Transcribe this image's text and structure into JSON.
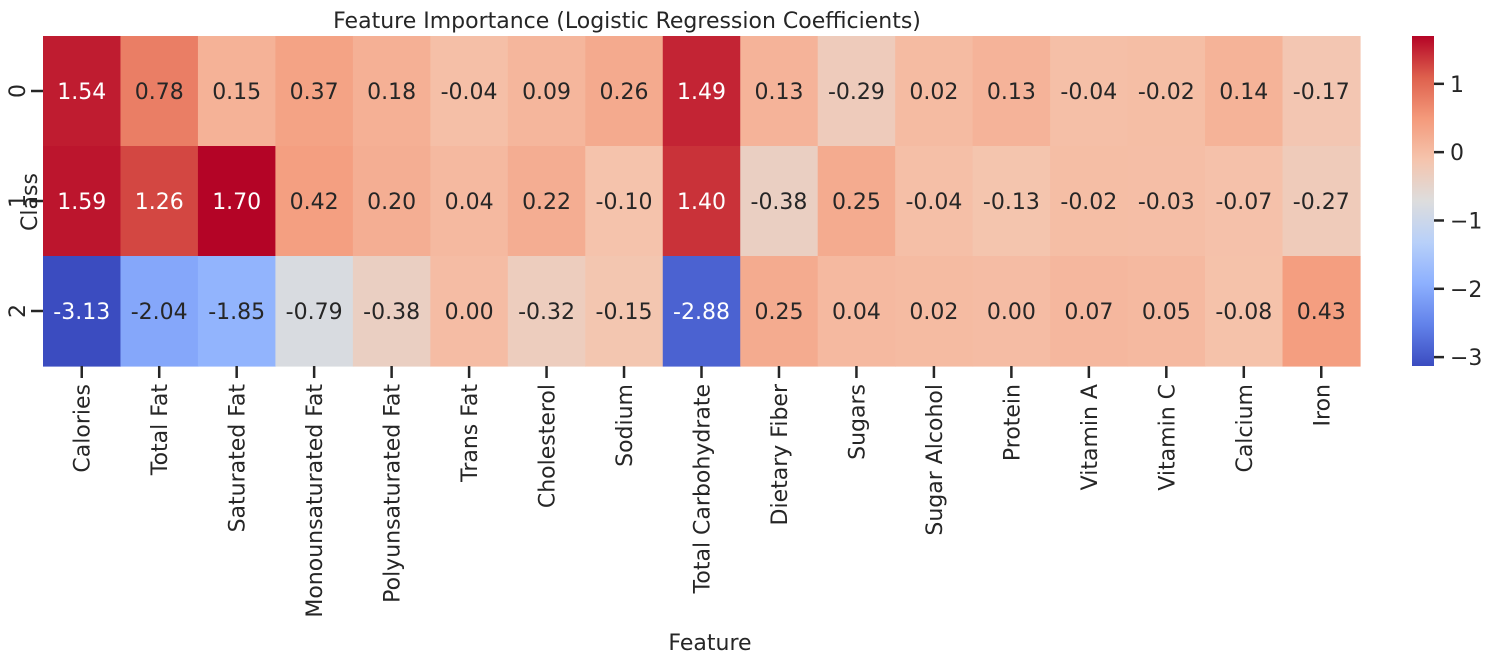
{
  "chart_data": {
    "type": "heatmap",
    "title": "Feature Importance (Logistic Regression Coefficients)",
    "xlabel": "Feature",
    "ylabel": "Class",
    "x": [
      "Calories",
      "Total Fat",
      "Saturated Fat",
      "Monounsaturated Fat",
      "Polyunsaturated Fat",
      "Trans Fat",
      "Cholesterol",
      "Sodium",
      "Total Carbohydrate",
      "Dietary Fiber",
      "Sugars",
      "Sugar Alcohol",
      "Protein",
      "Vitamin A",
      "Vitamin C",
      "Calcium",
      "Iron"
    ],
    "y": [
      "0",
      "1",
      "2"
    ],
    "values": [
      [
        1.54,
        0.78,
        0.15,
        0.37,
        0.18,
        -0.04,
        0.09,
        0.26,
        1.49,
        0.13,
        -0.29,
        0.02,
        0.13,
        -0.04,
        -0.02,
        0.14,
        -0.17
      ],
      [
        1.59,
        1.26,
        1.7,
        0.42,
        0.2,
        0.04,
        0.22,
        -0.1,
        1.4,
        -0.38,
        0.25,
        -0.04,
        -0.13,
        -0.02,
        -0.03,
        -0.07,
        -0.27
      ],
      [
        -3.13,
        -2.04,
        -1.85,
        -0.79,
        -0.38,
        0.0,
        -0.32,
        -0.15,
        -2.88,
        0.25,
        0.04,
        0.02,
        0.0,
        0.07,
        0.05,
        -0.08,
        0.43
      ]
    ],
    "colormap": "coolwarm",
    "vmin": -3.13,
    "vmax": 1.7,
    "colorbar_ticks": [
      "1",
      "0",
      "−1",
      "−2",
      "−3"
    ],
    "annotations": true
  }
}
